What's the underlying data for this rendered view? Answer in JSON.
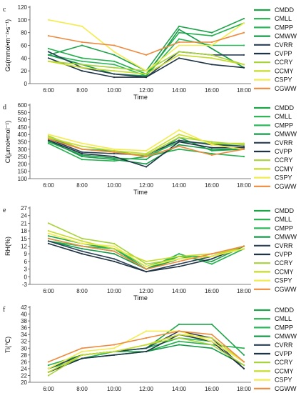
{
  "series_meta": [
    {
      "name": "CMDD",
      "color": "#1fa34a"
    },
    {
      "name": "CMLL",
      "color": "#24b04d"
    },
    {
      "name": "CMPP",
      "color": "#2bb85a"
    },
    {
      "name": "CMWW",
      "color": "#169a4a"
    },
    {
      "name": "CVRR",
      "color": "#2a3f56"
    },
    {
      "name": "CVPP",
      "color": "#1e3344"
    },
    {
      "name": "CCRY",
      "color": "#a7d23a"
    },
    {
      "name": "CCMY",
      "color": "#c6db2c"
    },
    {
      "name": "CSPY",
      "color": "#f3ec4e"
    },
    {
      "name": "CGWW",
      "color": "#ee8a3e"
    }
  ],
  "chart_data": [
    {
      "type": "line",
      "panel": "c",
      "ylabel": "Gs(mmol•m⁻²•s⁻¹)",
      "xlabel": "Time",
      "categories": [
        "6:00",
        "8:00",
        "10:00",
        "12:00",
        "14:00",
        "16:00",
        "18:00"
      ],
      "ylim": [
        0,
        120
      ],
      "yticks": [
        "0",
        "20",
        "40",
        "60",
        "80",
        "100",
        "120"
      ],
      "series": [
        {
          "name": "CMDD",
          "values": [
            45,
            60,
            45,
            20,
            90,
            80,
            102
          ]
        },
        {
          "name": "CMLL",
          "values": [
            55,
            40,
            35,
            15,
            80,
            75,
            95
          ]
        },
        {
          "name": "CMPP",
          "values": [
            45,
            35,
            30,
            12,
            70,
            60,
            60
          ]
        },
        {
          "name": "CMWW",
          "values": [
            45,
            30,
            15,
            12,
            85,
            55,
            25
          ]
        },
        {
          "name": "CVRR",
          "values": [
            50,
            25,
            15,
            10,
            50,
            45,
            45
          ]
        },
        {
          "name": "CVPP",
          "values": [
            40,
            20,
            10,
            10,
            40,
            30,
            25
          ]
        },
        {
          "name": "CCRY",
          "values": [
            35,
            30,
            25,
            20,
            50,
            45,
            30
          ]
        },
        {
          "name": "CCMY",
          "values": [
            35,
            25,
            20,
            15,
            45,
            40,
            30
          ]
        },
        {
          "name": "CSPY",
          "values": [
            100,
            90,
            50,
            20,
            60,
            60,
            95
          ]
        },
        {
          "name": "CGWW",
          "values": [
            75,
            65,
            60,
            45,
            65,
            65,
            80
          ]
        }
      ]
    },
    {
      "type": "line",
      "panel": "d",
      "ylabel": "Ci(μmol•mol⁻¹)",
      "xlabel": "Time",
      "categories": [
        "6:00",
        "8:00",
        "10:00",
        "12:00",
        "14:00",
        "16:00",
        "18:00"
      ],
      "ylim": [
        100,
        600
      ],
      "yticks": [
        "100",
        "150",
        "200",
        "250",
        "300",
        "350",
        "400",
        "450",
        "500",
        "550",
        "600"
      ],
      "series": [
        {
          "name": "CMDD",
          "values": [
            350,
            260,
            240,
            230,
            380,
            290,
            300
          ]
        },
        {
          "name": "CMLL",
          "values": [
            340,
            230,
            220,
            250,
            300,
            270,
            250
          ]
        },
        {
          "name": "CMPP",
          "values": [
            380,
            300,
            290,
            250,
            350,
            340,
            320
          ]
        },
        {
          "name": "CMWW",
          "values": [
            360,
            250,
            230,
            200,
            330,
            300,
            300
          ]
        },
        {
          "name": "CVRR",
          "values": [
            370,
            280,
            270,
            260,
            360,
            330,
            320
          ]
        },
        {
          "name": "CVPP",
          "values": [
            360,
            270,
            250,
            180,
            350,
            310,
            310
          ]
        },
        {
          "name": "CCRY",
          "values": [
            390,
            300,
            280,
            260,
            380,
            350,
            330
          ]
        },
        {
          "name": "CCMY",
          "values": [
            380,
            320,
            290,
            270,
            400,
            340,
            340
          ]
        },
        {
          "name": "CSPY",
          "values": [
            400,
            340,
            300,
            290,
            430,
            330,
            300
          ]
        },
        {
          "name": "CGWW",
          "values": [
            370,
            300,
            280,
            250,
            320,
            260,
            300
          ]
        }
      ]
    },
    {
      "type": "line",
      "panel": "e",
      "ylabel": "RH(%)",
      "xlabel": "Time",
      "categories": [
        "6:00",
        "8:00",
        "10:00",
        "12:00",
        "14:00",
        "16:00",
        "18:00"
      ],
      "ylim": [
        -3,
        27
      ],
      "yticks": [
        "-3",
        "0",
        "3",
        "6",
        "9",
        "12",
        "15",
        "18",
        "21",
        "24",
        "27"
      ],
      "series": [
        {
          "name": "CMDD",
          "values": [
            16,
            13,
            11,
            3,
            8,
            6,
            12
          ]
        },
        {
          "name": "CMLL",
          "values": [
            15,
            12,
            10,
            3,
            9,
            5,
            11
          ]
        },
        {
          "name": "CMPP",
          "values": [
            14,
            12,
            11,
            4,
            8,
            8,
            11
          ]
        },
        {
          "name": "CMWW",
          "values": [
            14,
            11,
            9,
            3,
            7,
            8,
            11
          ]
        },
        {
          "name": "CVRR",
          "values": [
            14,
            10,
            7,
            2,
            5,
            8,
            12
          ]
        },
        {
          "name": "CVPP",
          "values": [
            13,
            9,
            6,
            2,
            4,
            7,
            12
          ]
        },
        {
          "name": "CCRY",
          "values": [
            21,
            15,
            13,
            5,
            7,
            8,
            12
          ]
        },
        {
          "name": "CCMY",
          "values": [
            18,
            14,
            11,
            6,
            8,
            9,
            11
          ]
        },
        {
          "name": "CSPY",
          "values": [
            17,
            13,
            12,
            4,
            7,
            8,
            11
          ]
        },
        {
          "name": "CGWW",
          "values": [
            15,
            12,
            10,
            3,
            6,
            9,
            12
          ]
        }
      ]
    },
    {
      "type": "line",
      "panel": "f",
      "ylabel": "Ti(℃)",
      "xlabel": "Time",
      "categories": [
        "6:00",
        "8:00",
        "10:00",
        "12:00",
        "14:00",
        "16:00",
        "18:00"
      ],
      "ylim": [
        20,
        42
      ],
      "yticks": [
        "20",
        "22",
        "24",
        "26",
        "28",
        "30",
        "32",
        "34",
        "36",
        "38",
        "40",
        "42"
      ],
      "series": [
        {
          "name": "CMDD",
          "values": [
            24,
            28,
            29,
            30,
            37,
            37,
            28
          ]
        },
        {
          "name": "CMLL",
          "values": [
            25,
            28,
            29,
            29,
            32,
            31,
            30
          ]
        },
        {
          "name": "CMPP",
          "values": [
            24,
            27,
            29,
            30,
            33,
            32,
            26
          ]
        },
        {
          "name": "CMWW",
          "values": [
            23,
            27,
            28,
            29,
            31,
            30,
            25
          ]
        },
        {
          "name": "CVRR",
          "values": [
            24,
            28,
            29,
            30,
            35,
            33,
            24
          ]
        },
        {
          "name": "CVPP",
          "values": [
            23,
            27,
            28,
            29,
            34,
            32,
            24
          ]
        },
        {
          "name": "CCRY",
          "values": [
            22,
            28,
            29,
            31,
            33,
            31,
            25
          ]
        },
        {
          "name": "CCMY",
          "values": [
            23,
            28,
            29,
            31,
            34,
            33,
            26
          ]
        },
        {
          "name": "CSPY",
          "values": [
            24,
            29,
            30,
            35,
            35,
            32,
            26
          ]
        },
        {
          "name": "CGWW",
          "values": [
            26,
            30,
            31,
            33,
            35,
            34,
            26
          ]
        }
      ]
    }
  ]
}
